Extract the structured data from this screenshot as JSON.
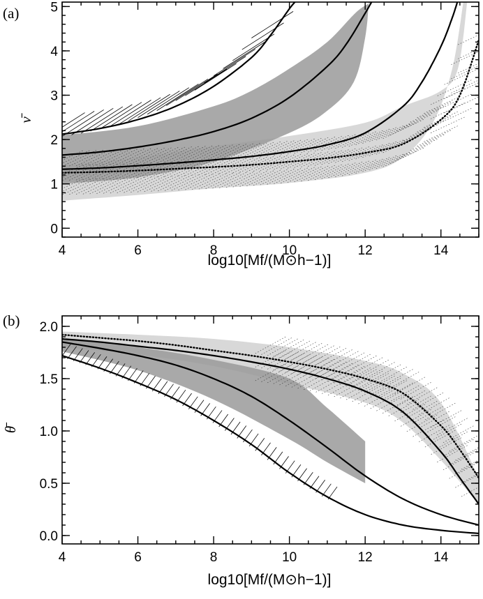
{
  "chart_data": [
    {
      "type": "line",
      "panel_label": "(a)",
      "xlabel": "log10[Mf/(M⊙h−1)]",
      "ylabel": "ν̄",
      "xlim": [
        4,
        15
      ],
      "ylim": [
        -0.2,
        5.1
      ],
      "xticks": [
        4,
        6,
        8,
        10,
        12,
        14
      ],
      "yticks": [
        0,
        1,
        2,
        3,
        4,
        5
      ],
      "grid": false,
      "series": [
        {
          "style": "solid",
          "values": [
            [
              4,
              2.12
            ],
            [
              5,
              2.25
            ],
            [
              6,
              2.45
            ],
            [
              7,
              2.75
            ],
            [
              8,
              3.2
            ],
            [
              9,
              3.85
            ],
            [
              9.5,
              4.35
            ],
            [
              10.0,
              4.95
            ],
            [
              10.2,
              5.15
            ]
          ]
        },
        {
          "style": "solid",
          "values": [
            [
              4,
              1.65
            ],
            [
              5,
              1.72
            ],
            [
              6,
              1.83
            ],
            [
              7,
              1.98
            ],
            [
              8,
              2.18
            ],
            [
              9,
              2.48
            ],
            [
              10,
              2.95
            ],
            [
              11,
              3.65
            ],
            [
              11.5,
              4.15
            ],
            [
              12.0,
              4.85
            ],
            [
              12.2,
              5.15
            ]
          ]
        },
        {
          "style": "solid",
          "values": [
            [
              4,
              1.33
            ],
            [
              5,
              1.36
            ],
            [
              6,
              1.41
            ],
            [
              7,
              1.47
            ],
            [
              8,
              1.54
            ],
            [
              9,
              1.62
            ],
            [
              10,
              1.73
            ],
            [
              11,
              1.88
            ],
            [
              12,
              2.15
            ],
            [
              13,
              2.75
            ],
            [
              13.5,
              3.3
            ],
            [
              14.0,
              4.1
            ],
            [
              14.3,
              4.75
            ],
            [
              14.45,
              5.15
            ]
          ]
        },
        {
          "style": "dotted",
          "values": [
            [
              4,
              1.25
            ],
            [
              5,
              1.27
            ],
            [
              6,
              1.3
            ],
            [
              7,
              1.34
            ],
            [
              8,
              1.38
            ],
            [
              9,
              1.43
            ],
            [
              10,
              1.5
            ],
            [
              11,
              1.58
            ],
            [
              12,
              1.7
            ],
            [
              13,
              1.9
            ],
            [
              14,
              2.45
            ],
            [
              14.5,
              3.0
            ],
            [
              15,
              4.25
            ]
          ]
        }
      ],
      "bands": [
        {
          "fill": "dark-gray",
          "lower": [
            [
              4,
              1.0
            ],
            [
              6,
              1.15
            ],
            [
              8,
              1.5
            ],
            [
              10,
              2.15
            ],
            [
              11,
              2.65
            ],
            [
              11.7,
              3.3
            ],
            [
              12.0,
              4.3
            ],
            [
              12.1,
              5.15
            ]
          ],
          "upper": [
            [
              4,
              2.1
            ],
            [
              6,
              2.3
            ],
            [
              8,
              2.75
            ],
            [
              9,
              3.1
            ],
            [
              10,
              3.6
            ],
            [
              11,
              4.2
            ],
            [
              11.8,
              4.9
            ],
            [
              12.3,
              5.15
            ]
          ]
        },
        {
          "fill": "light-gray",
          "lower": [
            [
              4,
              0.62
            ],
            [
              6,
              0.75
            ],
            [
              8,
              0.9
            ],
            [
              10,
              1.02
            ],
            [
              12,
              1.25
            ],
            [
              13,
              1.6
            ],
            [
              13.8,
              2.4
            ],
            [
              14.3,
              3.6
            ],
            [
              14.6,
              5.15
            ]
          ],
          "upper": [
            [
              4,
              1.42
            ],
            [
              6,
              1.6
            ],
            [
              8,
              1.85
            ],
            [
              10,
              2.08
            ],
            [
              12,
              2.38
            ],
            [
              13,
              2.75
            ],
            [
              14,
              3.1
            ],
            [
              14.45,
              3.6
            ],
            [
              14.7,
              5.15
            ]
          ]
        }
      ]
    },
    {
      "type": "line",
      "panel_label": "(b)",
      "xlabel": "log10[Mf/(M⊙h−1)]",
      "ylabel": "θ̄",
      "xlim": [
        4,
        15
      ],
      "ylim": [
        -0.08,
        2.1
      ],
      "xticks": [
        4,
        6,
        8,
        10,
        12,
        14
      ],
      "yticks": [
        "0.0",
        "0.5",
        "1.0",
        "1.5",
        "2.0"
      ],
      "grid": false,
      "series": [
        {
          "style": "solid",
          "values": [
            [
              4,
              1.72
            ],
            [
              5,
              1.6
            ],
            [
              6,
              1.46
            ],
            [
              7,
              1.3
            ],
            [
              8,
              1.1
            ],
            [
              9,
              0.87
            ],
            [
              10,
              0.6
            ],
            [
              11,
              0.37
            ],
            [
              12,
              0.2
            ],
            [
              13,
              0.1
            ],
            [
              14,
              0.05
            ],
            [
              15,
              0.02
            ]
          ]
        },
        {
          "style": "solid",
          "values": [
            [
              4,
              1.85
            ],
            [
              5,
              1.79
            ],
            [
              6,
              1.72
            ],
            [
              7,
              1.63
            ],
            [
              8,
              1.5
            ],
            [
              9,
              1.33
            ],
            [
              10,
              1.1
            ],
            [
              11,
              0.84
            ],
            [
              12,
              0.57
            ],
            [
              13,
              0.35
            ],
            [
              14,
              0.2
            ],
            [
              15,
              0.1
            ]
          ]
        },
        {
          "style": "solid",
          "values": [
            [
              4,
              1.88
            ],
            [
              5,
              1.85
            ],
            [
              6,
              1.81
            ],
            [
              7,
              1.77
            ],
            [
              8,
              1.72
            ],
            [
              9,
              1.66
            ],
            [
              10,
              1.59
            ],
            [
              11,
              1.5
            ],
            [
              12,
              1.38
            ],
            [
              13,
              1.18
            ],
            [
              14,
              0.8
            ],
            [
              14.5,
              0.55
            ],
            [
              15,
              0.3
            ]
          ]
        },
        {
          "style": "dotted",
          "values": [
            [
              4,
              1.92
            ],
            [
              5,
              1.89
            ],
            [
              6,
              1.86
            ],
            [
              7,
              1.82
            ],
            [
              8,
              1.77
            ],
            [
              9,
              1.72
            ],
            [
              10,
              1.66
            ],
            [
              11,
              1.59
            ],
            [
              12,
              1.5
            ],
            [
              13,
              1.36
            ],
            [
              14,
              1.05
            ],
            [
              14.5,
              0.82
            ],
            [
              15,
              0.55
            ]
          ]
        }
      ],
      "bands": [
        {
          "fill": "dark-gray",
          "lower": [
            [
              4,
              1.76
            ],
            [
              6,
              1.58
            ],
            [
              8,
              1.3
            ],
            [
              10,
              0.92
            ],
            [
              11,
              0.7
            ],
            [
              12,
              0.5
            ]
          ],
          "upper": [
            [
              4,
              1.88
            ],
            [
              6,
              1.8
            ],
            [
              8,
              1.68
            ],
            [
              10,
              1.5
            ],
            [
              11,
              1.22
            ],
            [
              12,
              0.9
            ]
          ]
        },
        {
          "fill": "light-gray",
          "lower": [
            [
              4,
              1.8
            ],
            [
              6,
              1.73
            ],
            [
              8,
              1.62
            ],
            [
              10,
              1.45
            ],
            [
              12,
              1.27
            ],
            [
              13,
              1.08
            ],
            [
              14,
              0.72
            ],
            [
              15,
              0.3
            ]
          ],
          "upper": [
            [
              4,
              1.95
            ],
            [
              6,
              1.92
            ],
            [
              8,
              1.88
            ],
            [
              10,
              1.8
            ],
            [
              12,
              1.67
            ],
            [
              13,
              1.55
            ],
            [
              14,
              1.27
            ],
            [
              15,
              0.55
            ]
          ]
        }
      ]
    }
  ]
}
